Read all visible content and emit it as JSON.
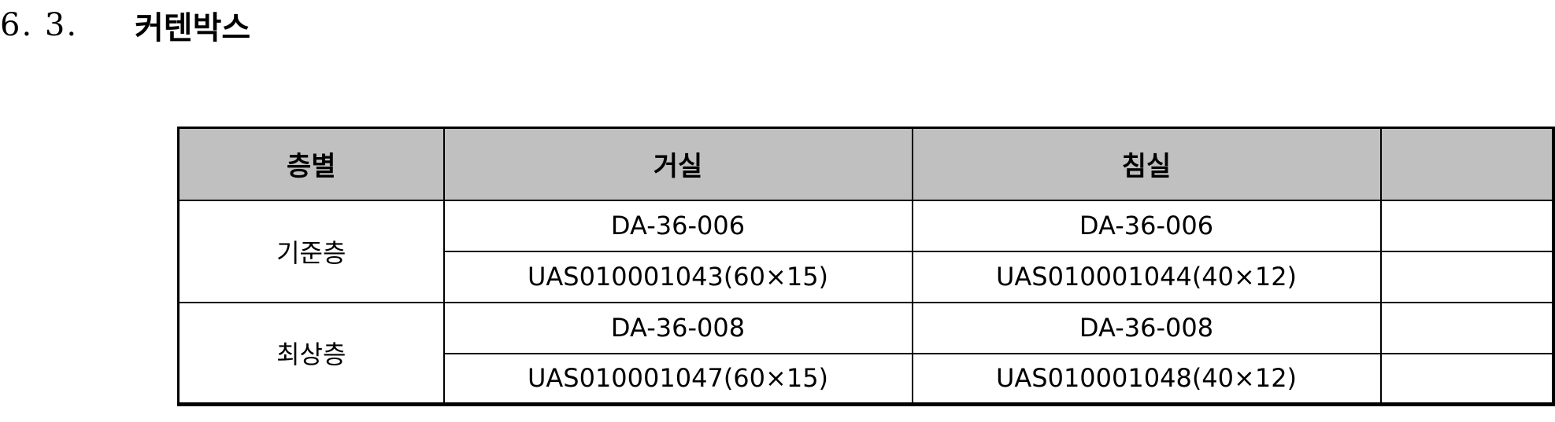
{
  "section": {
    "number": "6. 3.",
    "title": "커텐박스"
  },
  "table": {
    "headers": {
      "floor": "층별",
      "living_room": "거실",
      "bedroom": "침실",
      "note": ""
    },
    "groups": [
      {
        "floor": "기준층",
        "rows": [
          {
            "living_room": "DA-36-006",
            "bedroom": "DA-36-006",
            "note": ""
          },
          {
            "living_room": "UAS010001043(60×15)",
            "bedroom": "UAS010001044(40×12)",
            "note": ""
          }
        ]
      },
      {
        "floor": "최상층",
        "rows": [
          {
            "living_room": "DA-36-008",
            "bedroom": "DA-36-008",
            "note": ""
          },
          {
            "living_room": "UAS010001047(60×15)",
            "bedroom": "UAS010001048(40×12)",
            "note": ""
          }
        ]
      }
    ]
  }
}
